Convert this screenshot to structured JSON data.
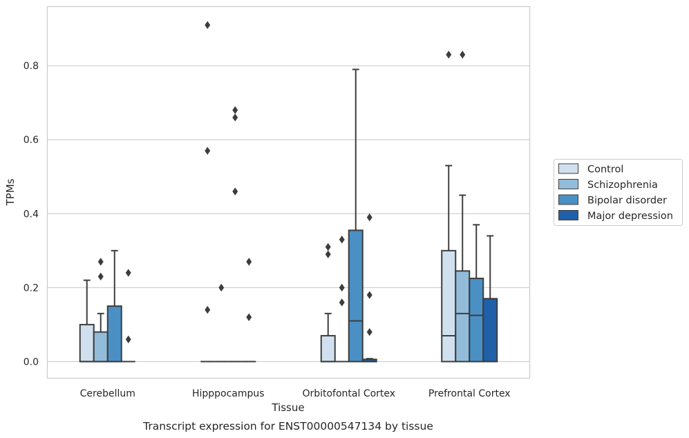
{
  "chart_data": {
    "type": "box",
    "xlabel": "Tissue",
    "ylabel": "TPMs",
    "caption": "Transcript expression for ENST00000547134 by tissue",
    "ylim": [
      -0.045,
      0.96
    ],
    "yticks": [
      "0.0",
      "0.2",
      "0.4",
      "0.6",
      "0.8"
    ],
    "grid": "horizontal",
    "legend_position": "right",
    "categories": [
      "Cerebellum",
      "Hipppocampus",
      "Orbitofontal Cortex",
      "Prefrontal Cortex"
    ],
    "series": [
      {
        "name": "Control",
        "color": "#d0e0ef"
      },
      {
        "name": "Schizophrenia",
        "color": "#93bcdb"
      },
      {
        "name": "Bipolar disorder",
        "color": "#4a90c4"
      },
      {
        "name": "Major depression",
        "color": "#2060a8"
      }
    ],
    "boxes": [
      {
        "category": "Cerebellum",
        "series": "Control",
        "whislo": 0,
        "q1": 0,
        "med": 0,
        "q3": 0.1,
        "whishi": 0.22,
        "fliers": []
      },
      {
        "category": "Cerebellum",
        "series": "Schizophrenia",
        "whislo": 0,
        "q1": 0,
        "med": 0,
        "q3": 0.08,
        "whishi": 0.13,
        "fliers": [
          0.23,
          0.27
        ]
      },
      {
        "category": "Cerebellum",
        "series": "Bipolar disorder",
        "whislo": 0,
        "q1": 0,
        "med": 0,
        "q3": 0.15,
        "whishi": 0.3,
        "fliers": []
      },
      {
        "category": "Cerebellum",
        "series": "Major depression",
        "whislo": 0,
        "q1": 0,
        "med": 0,
        "q3": 0,
        "whishi": 0,
        "fliers": [
          0.06,
          0.24
        ]
      },
      {
        "category": "Hipppocampus",
        "series": "Control",
        "whislo": 0,
        "q1": 0,
        "med": 0,
        "q3": 0,
        "whishi": 0,
        "fliers": [
          0.14,
          0.57,
          0.91
        ]
      },
      {
        "category": "Hipppocampus",
        "series": "Schizophrenia",
        "whislo": 0,
        "q1": 0,
        "med": 0,
        "q3": 0,
        "whishi": 0,
        "fliers": [
          0.2
        ]
      },
      {
        "category": "Hipppocampus",
        "series": "Bipolar disorder",
        "whislo": 0,
        "q1": 0,
        "med": 0,
        "q3": 0,
        "whishi": 0,
        "fliers": [
          0.46,
          0.66,
          0.68
        ]
      },
      {
        "category": "Hipppocampus",
        "series": "Major depression",
        "whislo": 0,
        "q1": 0,
        "med": 0,
        "q3": 0,
        "whishi": 0,
        "fliers": [
          0.12,
          0.27
        ]
      },
      {
        "category": "Orbitofontal Cortex",
        "series": "Control",
        "whislo": 0,
        "q1": 0,
        "med": 0,
        "q3": 0.07,
        "whishi": 0.13,
        "fliers": [
          0.29,
          0.31
        ]
      },
      {
        "category": "Orbitofontal Cortex",
        "series": "Schizophrenia",
        "whislo": 0,
        "q1": 0,
        "med": 0,
        "q3": 0,
        "whishi": 0,
        "fliers": [
          0.16,
          0.2,
          0.33
        ]
      },
      {
        "category": "Orbitofontal Cortex",
        "series": "Bipolar disorder",
        "whislo": 0,
        "q1": 0,
        "med": 0.11,
        "q3": 0.355,
        "whishi": 0.79,
        "fliers": []
      },
      {
        "category": "Orbitofontal Cortex",
        "series": "Major depression",
        "whislo": 0,
        "q1": 0,
        "med": 0,
        "q3": 0.006,
        "whishi": 0.008,
        "fliers": [
          0.08,
          0.18,
          0.39
        ]
      },
      {
        "category": "Prefrontal Cortex",
        "series": "Control",
        "whislo": 0,
        "q1": 0,
        "med": 0.07,
        "q3": 0.3,
        "whishi": 0.53,
        "fliers": [
          0.83
        ]
      },
      {
        "category": "Prefrontal Cortex",
        "series": "Schizophrenia",
        "whislo": 0,
        "q1": 0,
        "med": 0.13,
        "q3": 0.245,
        "whishi": 0.45,
        "fliers": [
          0.83
        ]
      },
      {
        "category": "Prefrontal Cortex",
        "series": "Bipolar disorder",
        "whislo": 0,
        "q1": 0,
        "med": 0.125,
        "q3": 0.225,
        "whishi": 0.37,
        "fliers": []
      },
      {
        "category": "Prefrontal Cortex",
        "series": "Major depression",
        "whislo": 0,
        "q1": 0,
        "med": 0.17,
        "q3": 0.17,
        "whishi": 0.34,
        "fliers": []
      }
    ]
  }
}
